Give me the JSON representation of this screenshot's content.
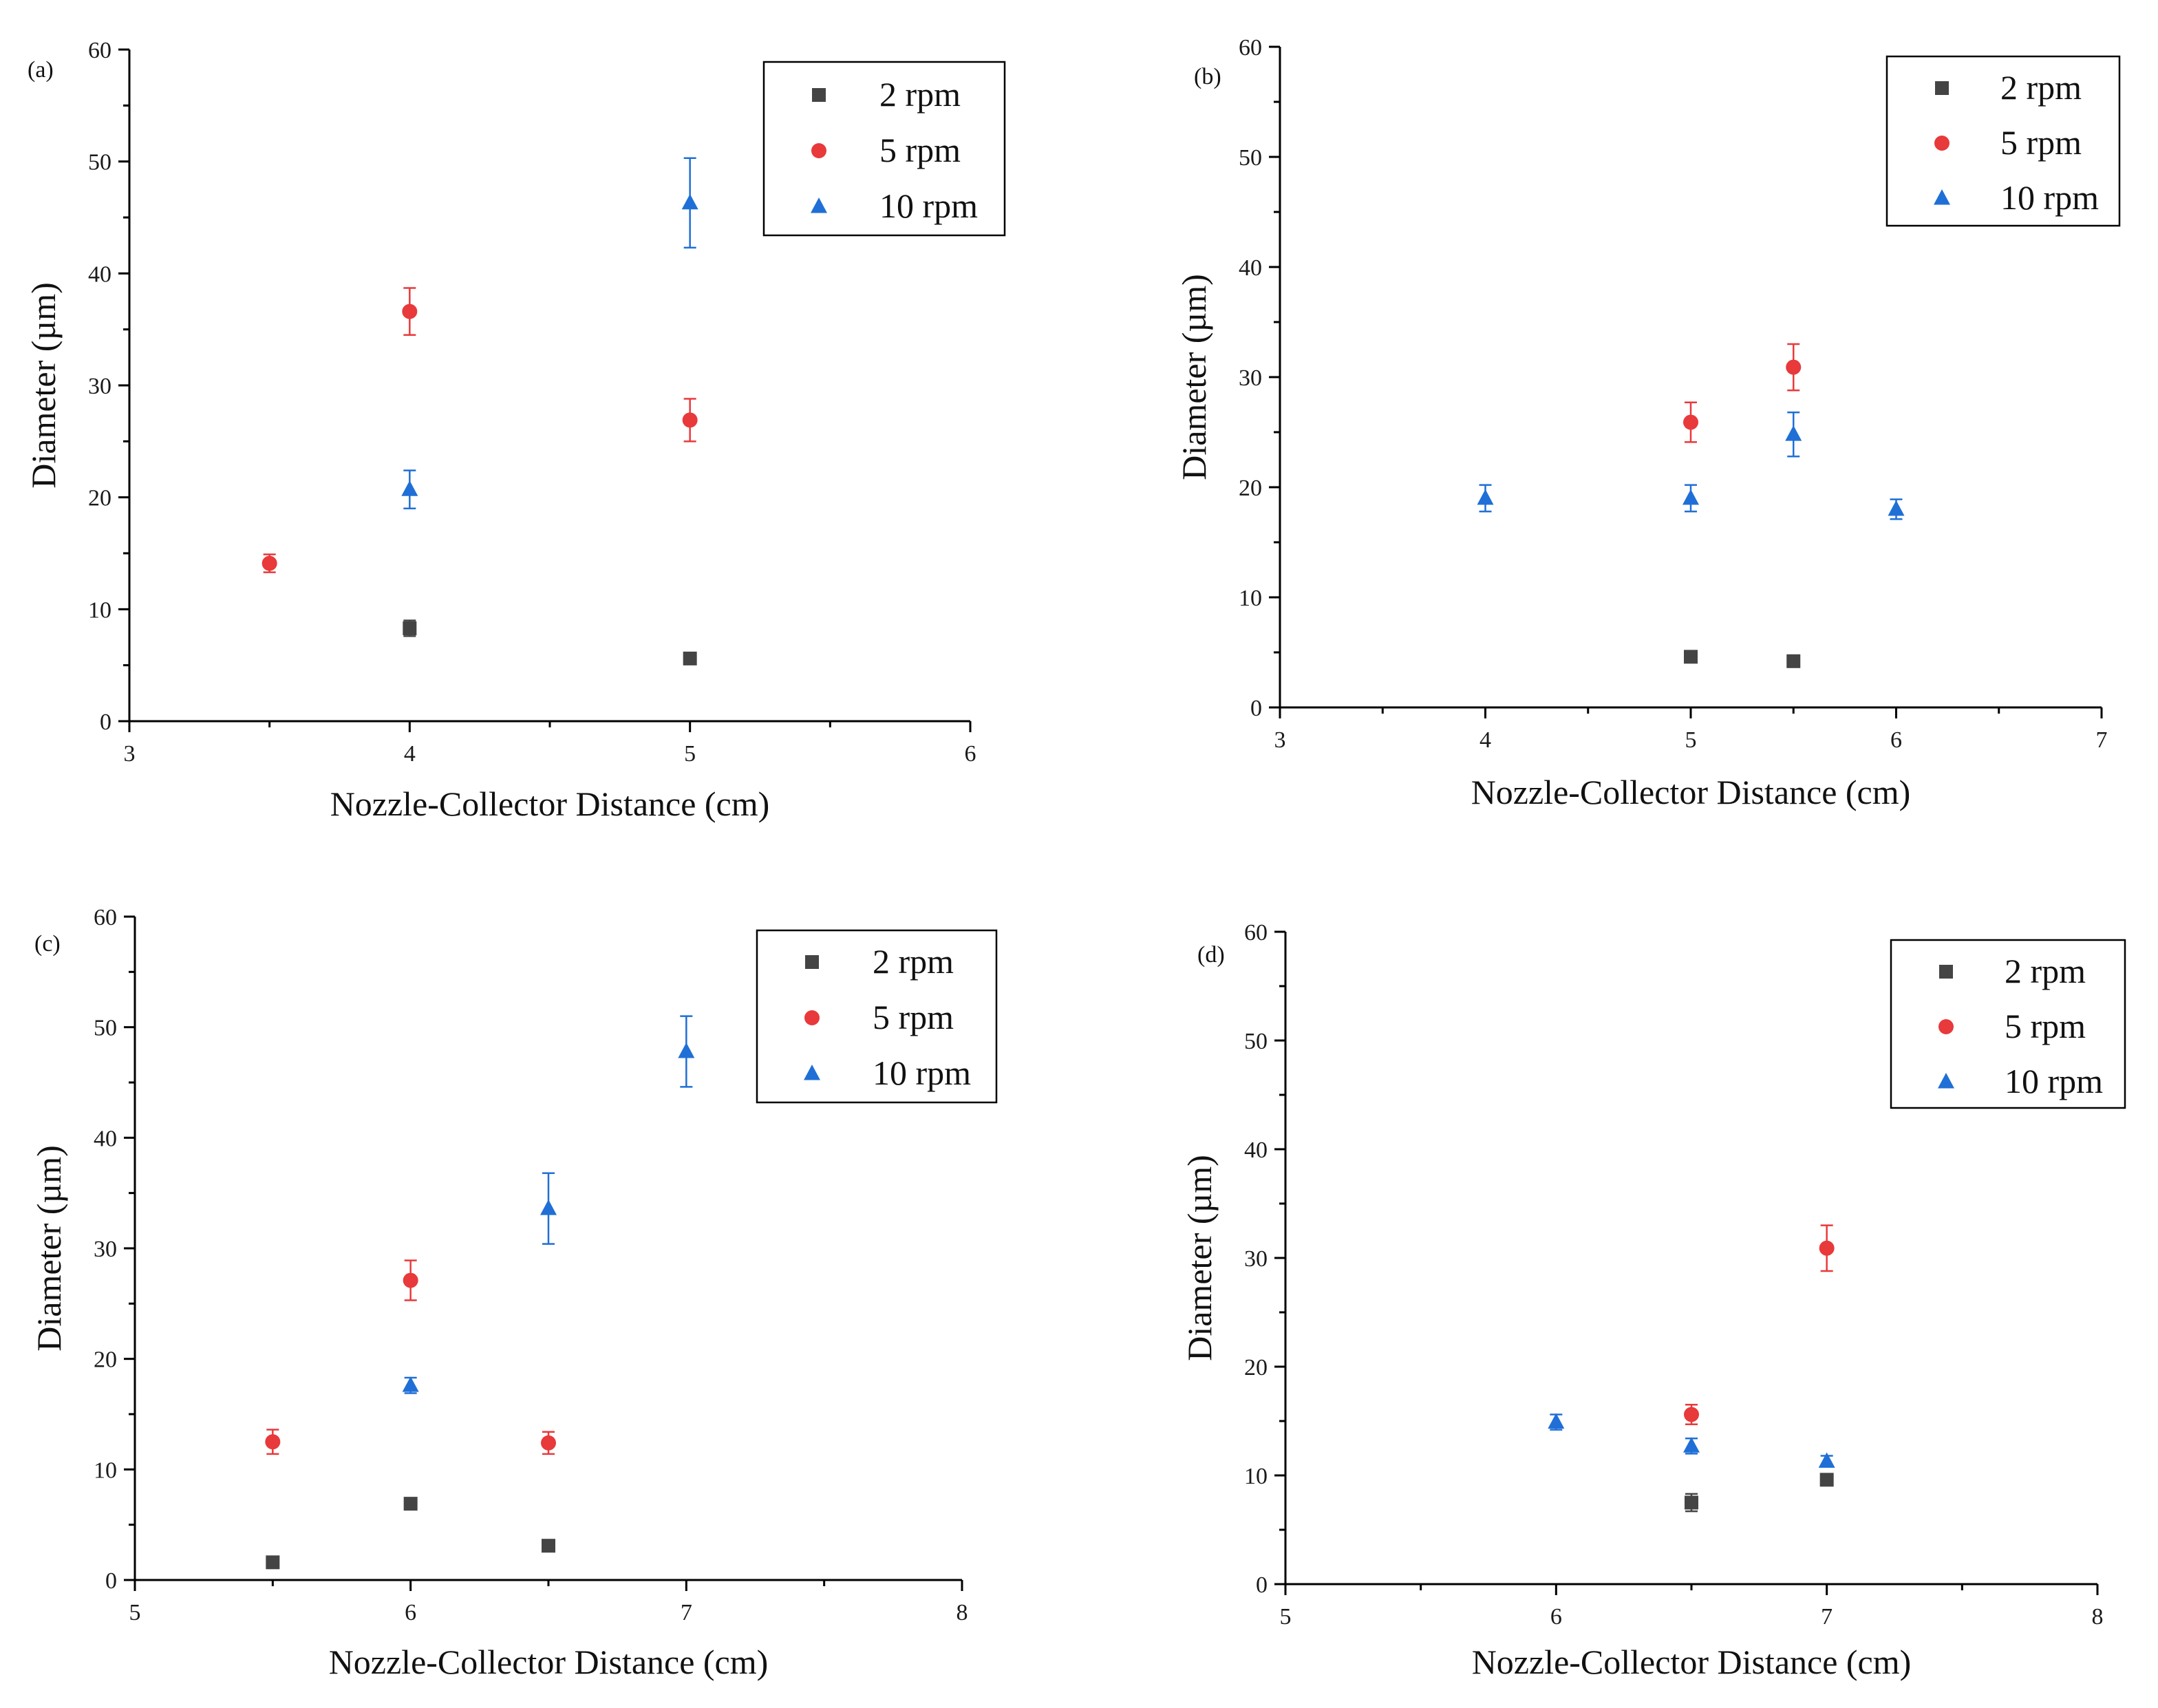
{
  "figure": {
    "series_styles": [
      {
        "name": "2 rpm",
        "marker": "square",
        "color": "#444444"
      },
      {
        "name": "5 rpm",
        "marker": "circle",
        "color": "#e8393b"
      },
      {
        "name": "10 rpm",
        "marker": "triangle",
        "color": "#1f6fd6"
      }
    ]
  },
  "chart_data": [
    {
      "panel": "(a)",
      "type": "scatter",
      "xlabel": "Nozzle-Collector Distance (cm)",
      "ylabel": "Diameter (µm)",
      "xlim": [
        3,
        6
      ],
      "ylim": [
        0,
        60
      ],
      "xticks": [
        3,
        4,
        5,
        6
      ],
      "yticks": [
        0,
        10,
        20,
        30,
        40,
        50,
        60
      ],
      "series": [
        {
          "name": "2 rpm",
          "points": [
            {
              "x": 4,
              "y": 8.3,
              "err": 0.7
            },
            {
              "x": 5,
              "y": 5.6,
              "err": 0.4
            }
          ]
        },
        {
          "name": "5 rpm",
          "points": [
            {
              "x": 3.5,
              "y": 14.1,
              "err": 0.8
            },
            {
              "x": 4,
              "y": 36.6,
              "err": 2.1
            },
            {
              "x": 5,
              "y": 26.9,
              "err": 1.9
            }
          ]
        },
        {
          "name": "10 rpm",
          "points": [
            {
              "x": 4,
              "y": 20.7,
              "err": 1.7
            },
            {
              "x": 5,
              "y": 46.3,
              "err": 4.0
            }
          ]
        }
      ]
    },
    {
      "panel": "(b)",
      "type": "scatter",
      "xlabel": "Nozzle-Collector Distance (cm)",
      "ylabel": "Diameter (µm)",
      "xlim": [
        3,
        7
      ],
      "ylim": [
        0,
        60
      ],
      "xticks": [
        3,
        4,
        5,
        6,
        7
      ],
      "yticks": [
        0,
        10,
        20,
        30,
        40,
        50,
        60
      ],
      "series": [
        {
          "name": "2 rpm",
          "points": [
            {
              "x": 5,
              "y": 4.6,
              "err": 0.4
            },
            {
              "x": 5.5,
              "y": 4.2,
              "err": 0.4
            }
          ]
        },
        {
          "name": "5 rpm",
          "points": [
            {
              "x": 5,
              "y": 25.9,
              "err": 1.8
            },
            {
              "x": 5.5,
              "y": 30.9,
              "err": 2.1
            }
          ]
        },
        {
          "name": "10 rpm",
          "points": [
            {
              "x": 4,
              "y": 19.0,
              "err": 1.2
            },
            {
              "x": 5,
              "y": 19.0,
              "err": 1.2
            },
            {
              "x": 5.5,
              "y": 24.8,
              "err": 2.0
            },
            {
              "x": 6,
              "y": 18.0,
              "err": 0.9
            }
          ]
        }
      ]
    },
    {
      "panel": "(c)",
      "type": "scatter",
      "xlabel": "Nozzle-Collector Distance (cm)",
      "ylabel": "Diameter (µm)",
      "xlim": [
        5,
        8
      ],
      "ylim": [
        0,
        60
      ],
      "xticks": [
        5,
        6,
        7,
        8
      ],
      "yticks": [
        0,
        10,
        20,
        30,
        40,
        50,
        60
      ],
      "series": [
        {
          "name": "2 rpm",
          "points": [
            {
              "x": 5.5,
              "y": 1.6,
              "err": 0.5
            },
            {
              "x": 6,
              "y": 6.9,
              "err": 0.5
            },
            {
              "x": 6.5,
              "y": 3.1,
              "err": 0.4
            }
          ]
        },
        {
          "name": "5 rpm",
          "points": [
            {
              "x": 5.5,
              "y": 12.5,
              "err": 1.1
            },
            {
              "x": 6,
              "y": 27.1,
              "err": 1.8
            },
            {
              "x": 6.5,
              "y": 12.4,
              "err": 1.0
            }
          ]
        },
        {
          "name": "10 rpm",
          "points": [
            {
              "x": 6,
              "y": 17.6,
              "err": 0.7
            },
            {
              "x": 6.5,
              "y": 33.6,
              "err": 3.2
            },
            {
              "x": 7,
              "y": 47.8,
              "err": 3.2
            }
          ]
        }
      ]
    },
    {
      "panel": "(d)",
      "type": "scatter",
      "xlabel": "Nozzle-Collector Distance (cm)",
      "ylabel": "Diameter (µm)",
      "xlim": [
        5,
        8
      ],
      "ylim": [
        0,
        60
      ],
      "xticks": [
        5,
        6,
        7,
        8
      ],
      "yticks": [
        0,
        10,
        20,
        30,
        40,
        50,
        60
      ],
      "series": [
        {
          "name": "2 rpm",
          "points": [
            {
              "x": 6.5,
              "y": 7.5,
              "err": 0.8
            },
            {
              "x": 7,
              "y": 9.6,
              "err": 0.5
            }
          ]
        },
        {
          "name": "5 rpm",
          "points": [
            {
              "x": 6.5,
              "y": 15.6,
              "err": 0.9
            },
            {
              "x": 7,
              "y": 30.9,
              "err": 2.1
            }
          ]
        },
        {
          "name": "10 rpm",
          "points": [
            {
              "x": 6,
              "y": 14.9,
              "err": 0.7
            },
            {
              "x": 6.5,
              "y": 12.7,
              "err": 0.7
            },
            {
              "x": 7,
              "y": 11.3,
              "err": 0.5
            }
          ]
        }
      ]
    }
  ]
}
